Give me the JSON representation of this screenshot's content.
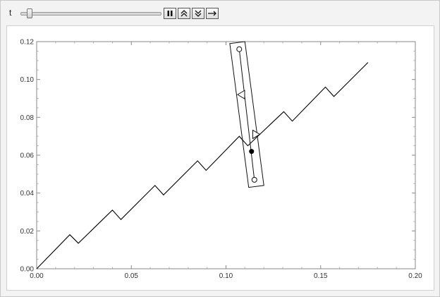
{
  "controls": {
    "parameter_label": "t",
    "slider_value_fraction": 0.04,
    "buttons": [
      {
        "name": "pause-button",
        "icon": "pause-icon"
      },
      {
        "name": "faster-button",
        "icon": "double-chevron-up-icon"
      },
      {
        "name": "slower-button",
        "icon": "double-chevron-down-icon"
      },
      {
        "name": "direction-button",
        "icon": "right-arrow-icon"
      }
    ]
  },
  "chart_data": {
    "type": "line",
    "title": "",
    "xlabel": "",
    "ylabel": "",
    "xlim": [
      0,
      0.2
    ],
    "ylim": [
      0,
      0.12
    ],
    "xticks": [
      "0.00",
      "0.05",
      "0.10",
      "0.15",
      "0.20"
    ],
    "yticks": [
      "0.00",
      "0.02",
      "0.04",
      "0.06",
      "0.08",
      "0.10",
      "0.12"
    ],
    "series": [
      {
        "name": "",
        "color": "#000000",
        "points": [
          [
            0.0,
            0.0
          ],
          [
            0.0175,
            0.018
          ],
          [
            0.022,
            0.0135
          ],
          [
            0.04,
            0.031
          ],
          [
            0.0445,
            0.026
          ],
          [
            0.0625,
            0.044
          ],
          [
            0.067,
            0.039
          ],
          [
            0.085,
            0.057
          ],
          [
            0.0895,
            0.052
          ],
          [
            0.107,
            0.07
          ],
          [
            0.1115,
            0.065
          ],
          [
            0.1305,
            0.083
          ],
          [
            0.135,
            0.078
          ],
          [
            0.1525,
            0.096
          ],
          [
            0.157,
            0.091
          ],
          [
            0.175,
            0.109
          ]
        ]
      }
    ],
    "overlay": {
      "rectangle_corners": [
        [
          0.102,
          0.119
        ],
        [
          0.11,
          0.12
        ],
        [
          0.12,
          0.044
        ],
        [
          0.112,
          0.043
        ]
      ],
      "open_circles": [
        [
          0.107,
          0.116
        ],
        [
          0.115,
          0.047
        ]
      ],
      "markers": [
        {
          "shape": "left-triangle",
          "at": [
            0.108,
            0.092
          ]
        },
        {
          "shape": "right-triangle",
          "at": [
            0.116,
            0.071
          ]
        }
      ],
      "filled_point": [
        0.1135,
        0.062
      ],
      "inner_line": [
        [
          0.107,
          0.116
        ],
        [
          0.115,
          0.047
        ]
      ]
    }
  }
}
